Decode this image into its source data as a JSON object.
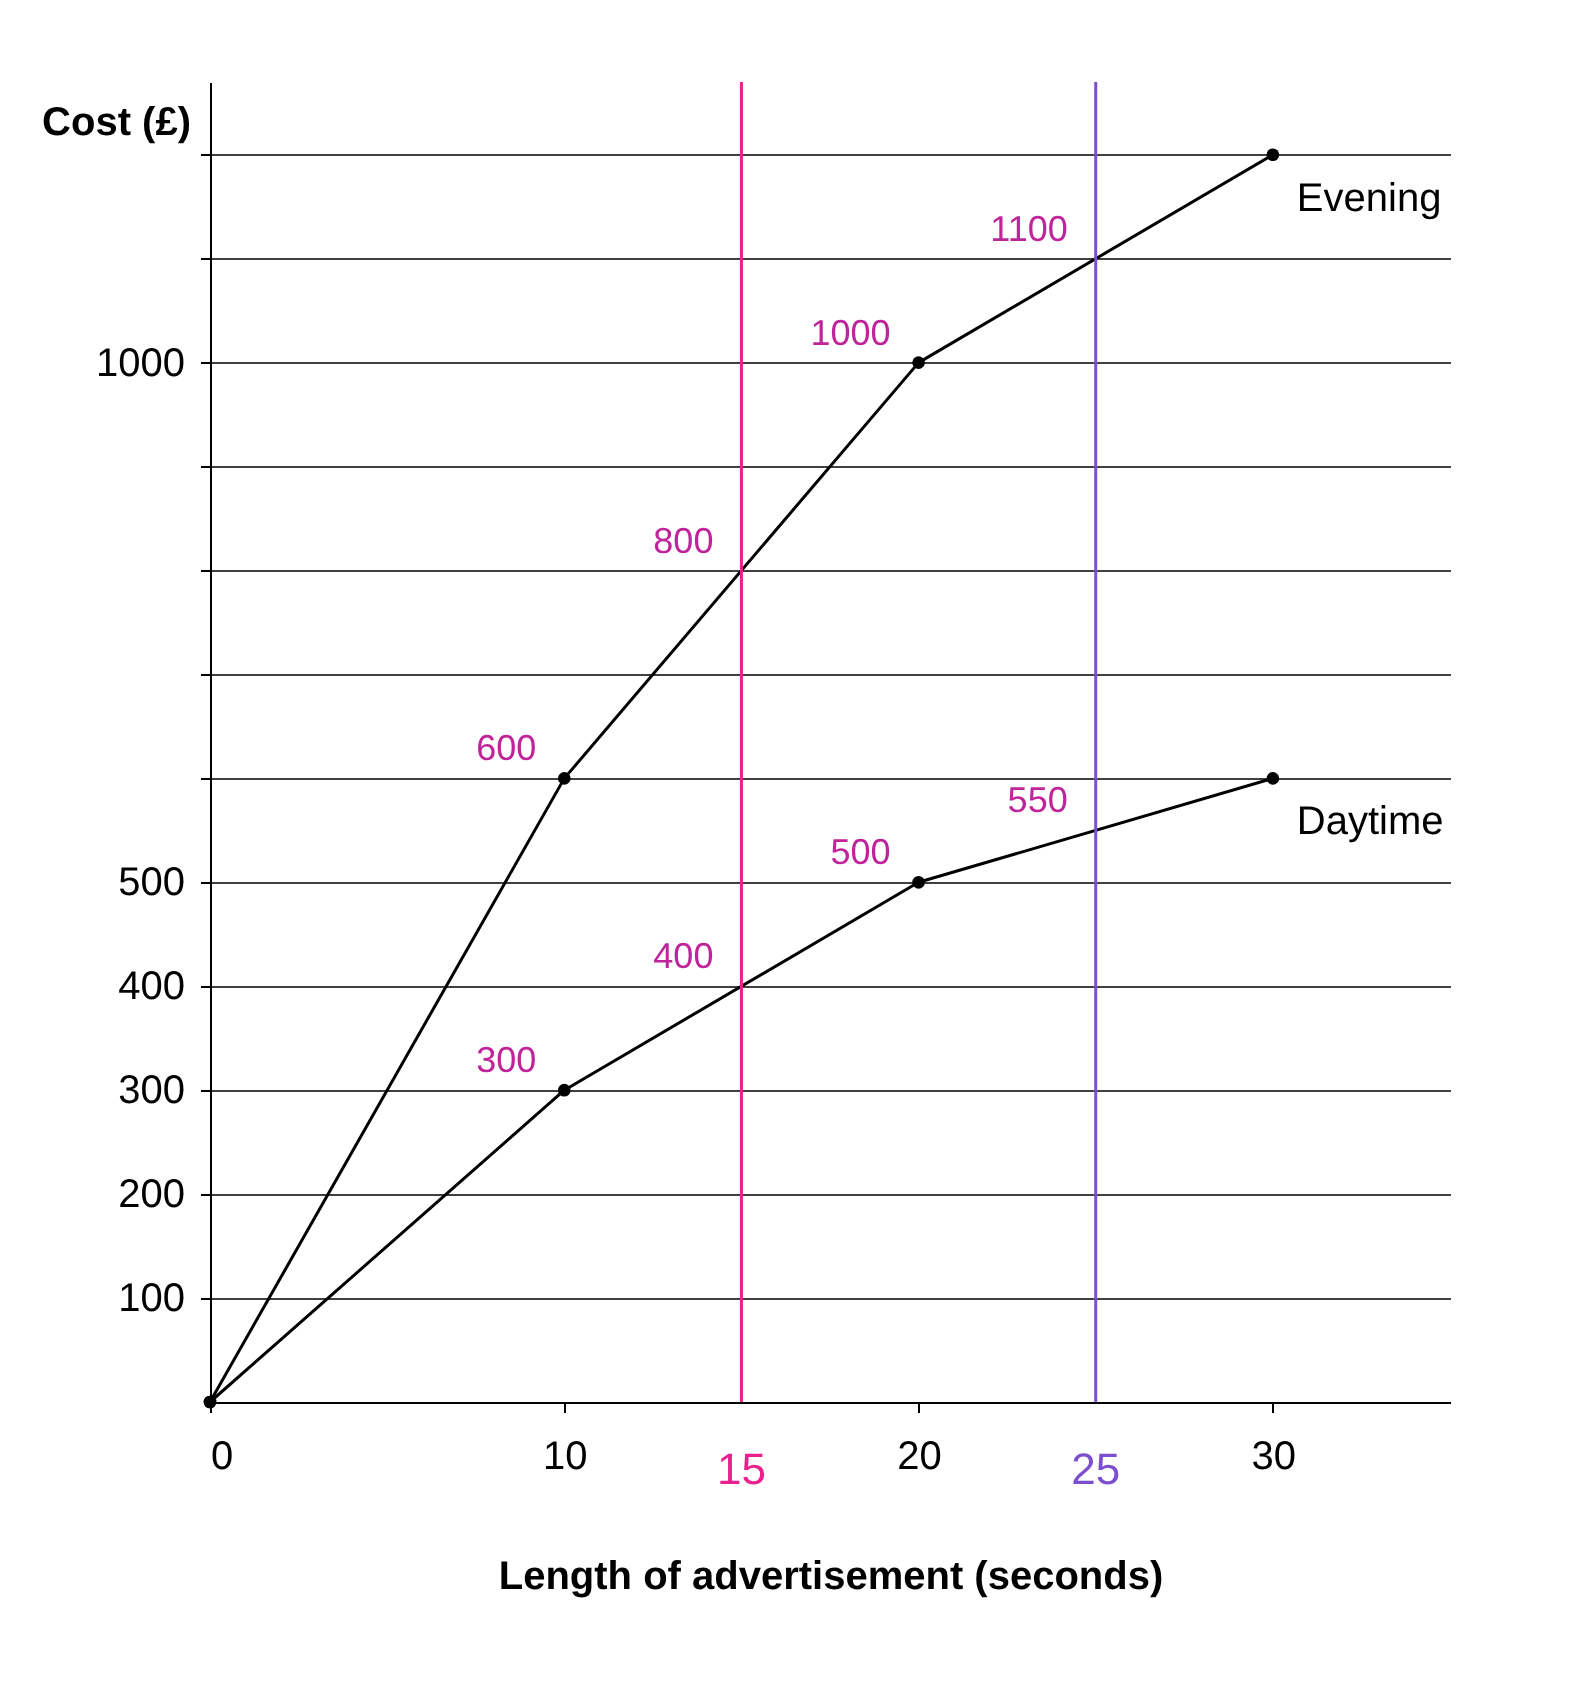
{
  "chart_data": {
    "type": "line",
    "xlabel": "Length of advertisement (seconds)",
    "ylabel": "Cost (£)",
    "x": [
      0,
      10,
      20,
      30
    ],
    "series": [
      {
        "name": "Evening",
        "color": "#000000",
        "values": [
          0,
          600,
          1000,
          1200
        ]
      },
      {
        "name": "Daytime",
        "color": "#000000",
        "values": [
          0,
          300,
          500,
          600
        ]
      }
    ],
    "xlim": [
      0,
      35
    ],
    "ylim": [
      0,
      1270
    ],
    "xticks": [
      0,
      10,
      20,
      30
    ],
    "yticks": [
      100,
      200,
      300,
      400,
      500,
      {
        "value": 600,
        "label": null
      },
      {
        "value": 700,
        "label": null
      },
      {
        "value": 800,
        "label": null
      },
      {
        "value": 900,
        "label": null
      },
      1000,
      {
        "value": 1100,
        "label": null
      },
      {
        "value": 1200,
        "label": null
      }
    ],
    "grid": "y",
    "legend": false,
    "marker": "circle",
    "line_style": "solid",
    "ref_lines": [
      {
        "axis": "x",
        "value": 15,
        "label": "15",
        "color": "#e8218c"
      },
      {
        "axis": "x",
        "value": 25,
        "label": "25",
        "color": "#7b4fd0"
      }
    ],
    "annotations": [
      {
        "text": "1100",
        "x": 25,
        "y": 1100
      },
      {
        "text": "800",
        "x": 15,
        "y": 800
      },
      {
        "text": "550",
        "x": 25,
        "y": 550
      },
      {
        "text": "400",
        "x": 15,
        "y": 400
      },
      {
        "text": "1000",
        "x": 20,
        "y": 1000
      },
      {
        "text": "600",
        "x": 10,
        "y": 600
      },
      {
        "text": "500",
        "x": 20,
        "y": 500
      },
      {
        "text": "300",
        "x": 10,
        "y": 300
      }
    ]
  }
}
